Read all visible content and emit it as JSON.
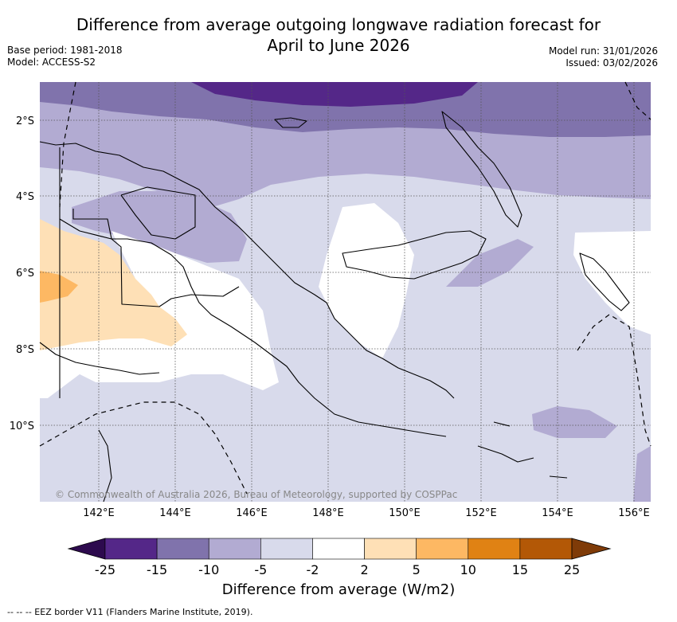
{
  "title_line1": "Difference from average outgoing longwave radiation forecast for",
  "title_line2": "April to June 2026",
  "base_period": "Base period: 1981-2018",
  "model": "Model: ACCESS-S2",
  "model_run": "Model run: 31/01/2026",
  "issued": "Issued: 03/02/2026",
  "copyright": "© Commonwealth of Australia 2026, Bureau of Meteorology, supported by COSPPac",
  "lon_ticks": [
    "142°E",
    "144°E",
    "146°E",
    "148°E",
    "150°E",
    "152°E",
    "154°E",
    "156°E"
  ],
  "lat_ticks": [
    "2°S",
    "4°S",
    "6°S",
    "8°S",
    "10°S"
  ],
  "colorbar": {
    "ticks": [
      "-25",
      "-15",
      "-10",
      "-5",
      "-2",
      "2",
      "5",
      "10",
      "15",
      "25"
    ],
    "under_color": "#2d0a4e",
    "over_color": "#7f3b08",
    "colors": [
      "#542788",
      "#8073ac",
      "#b2abd2",
      "#d8daeb",
      "#ffffff",
      "#fee0b6",
      "#fdb863",
      "#e08214",
      "#b35806"
    ],
    "label": "Difference from average (W/m2)"
  },
  "footer": "-- -- -- EEZ border V11 (Flanders Marine Institute, 2019)."
}
